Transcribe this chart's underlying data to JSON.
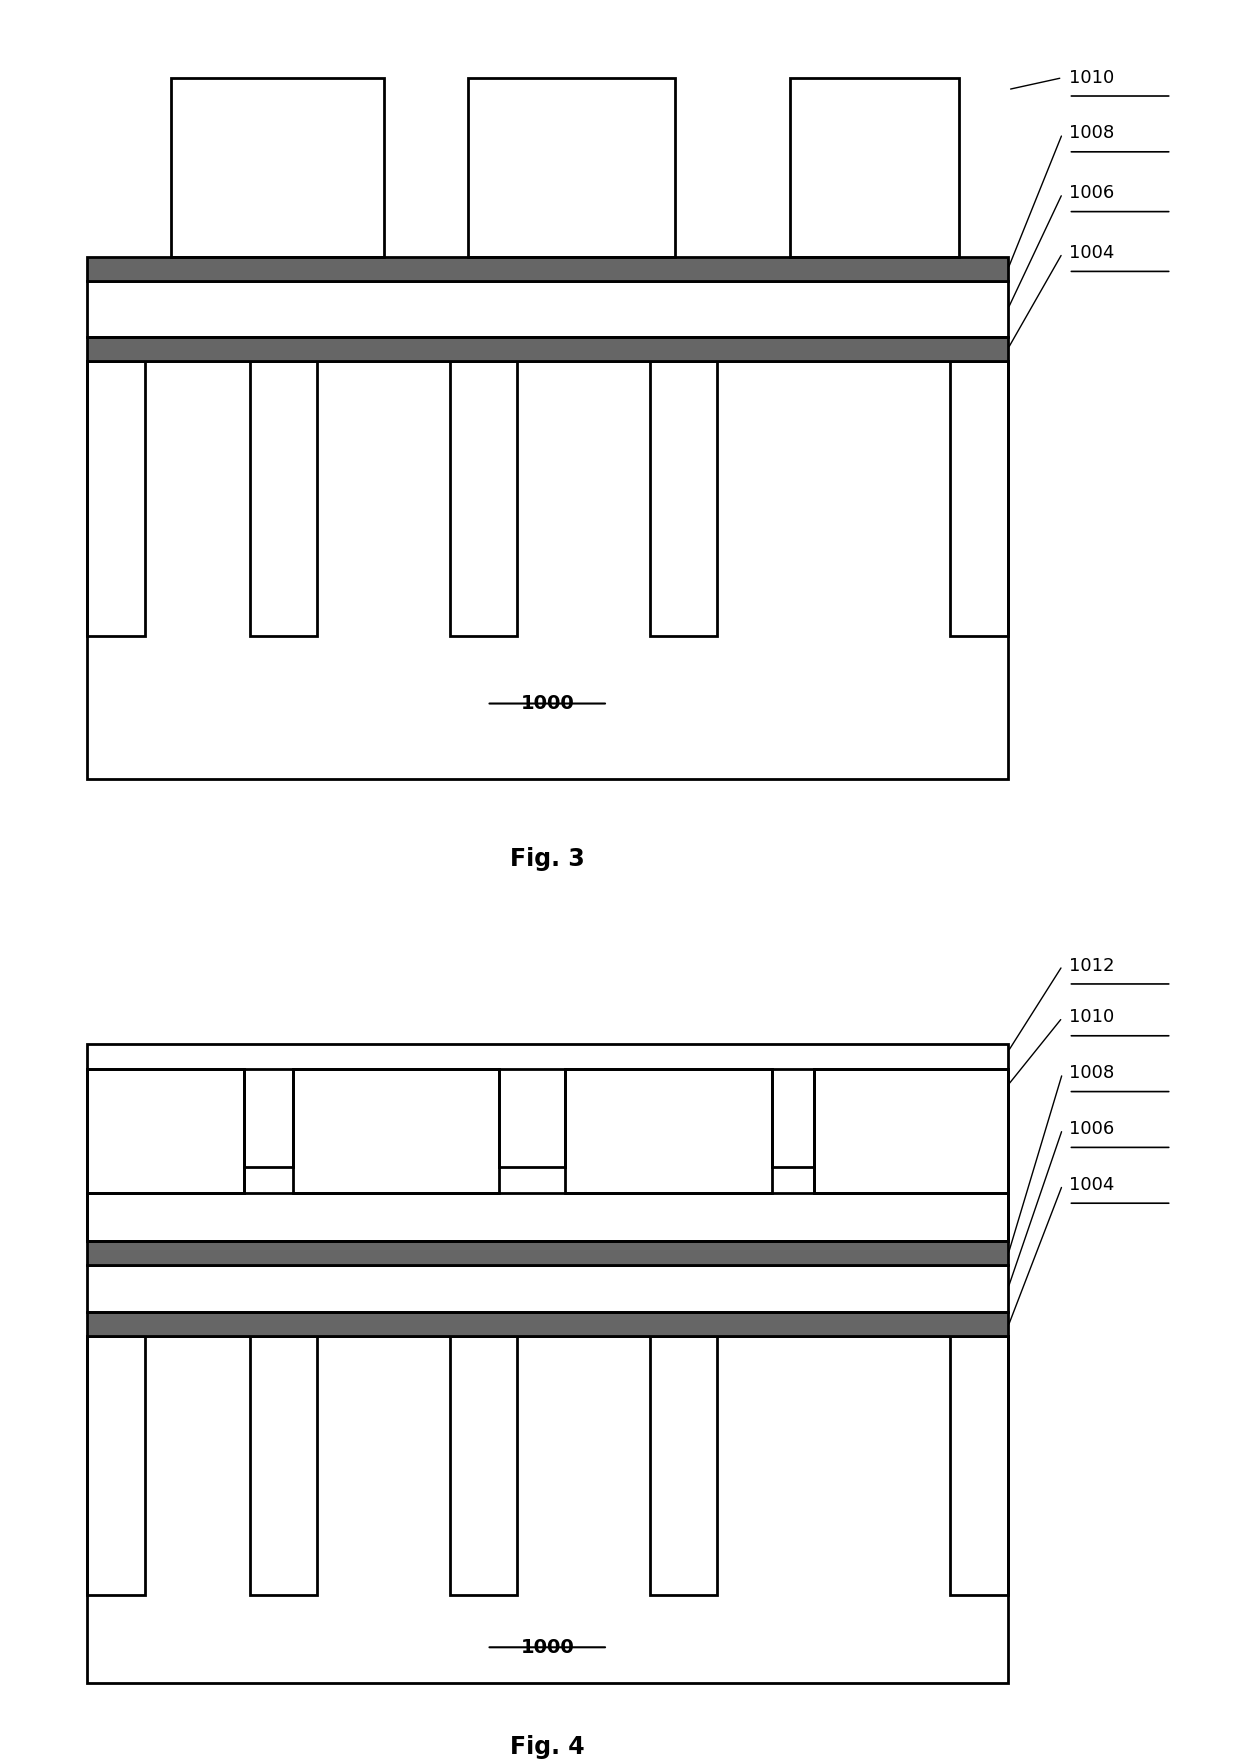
{
  "bg_color": "#ffffff",
  "line_color": "#000000",
  "line_width": 2.0,
  "fig3": {
    "title": "Fig. 3",
    "label_1000": "1000",
    "label_1004": "1004",
    "label_1006": "1006",
    "label_1008": "1008",
    "label_1010": "1010"
  },
  "fig4": {
    "title": "Fig. 4",
    "label_1000": "1000",
    "label_1004": "1004",
    "label_1006": "1006",
    "label_1008": "1008",
    "label_1010": "1010",
    "label_1012": "1012"
  }
}
